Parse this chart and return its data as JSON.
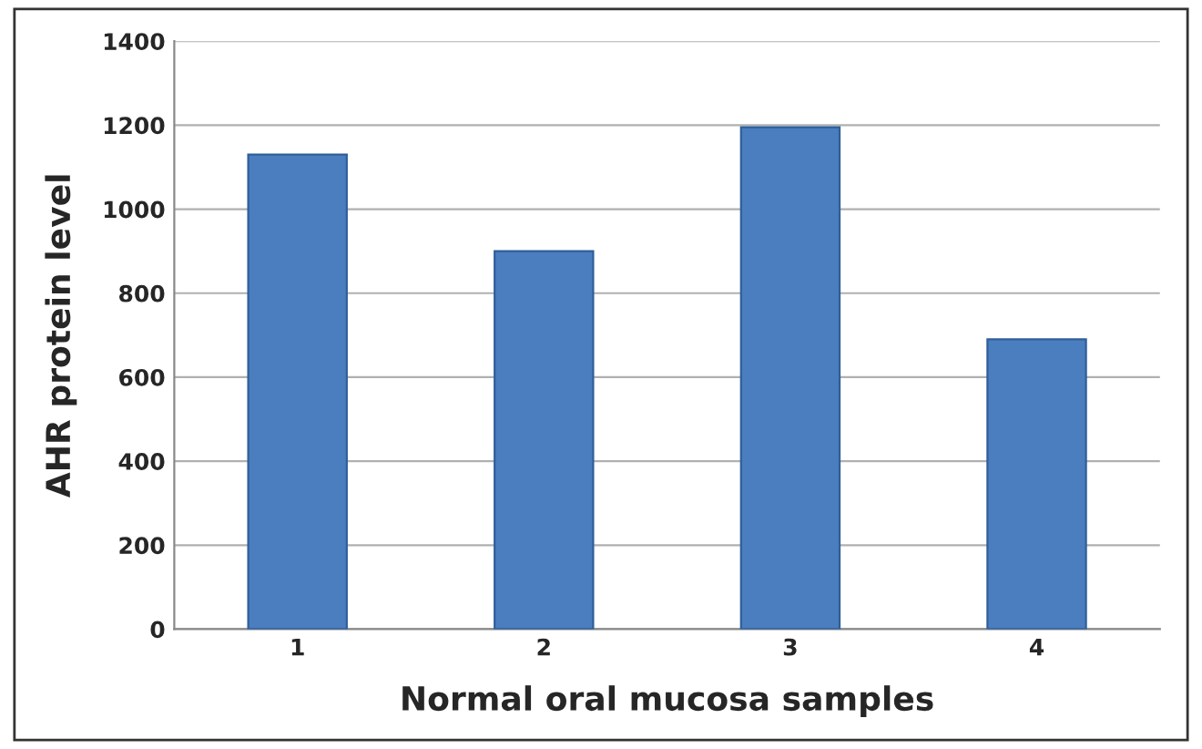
{
  "chart_data": {
    "type": "bar",
    "xlabel": "Normal oral mucosa samples",
    "ylabel": "AHR protein level",
    "categories": [
      "1",
      "2",
      "3",
      "4"
    ],
    "values": [
      1130,
      900,
      1195,
      690
    ],
    "color": "#4a7ebf",
    "ylim": [
      0,
      1400
    ],
    "yticks": [
      0,
      200,
      400,
      600,
      800,
      1000,
      1200,
      1400
    ],
    "grid": "y",
    "legend": false
  }
}
